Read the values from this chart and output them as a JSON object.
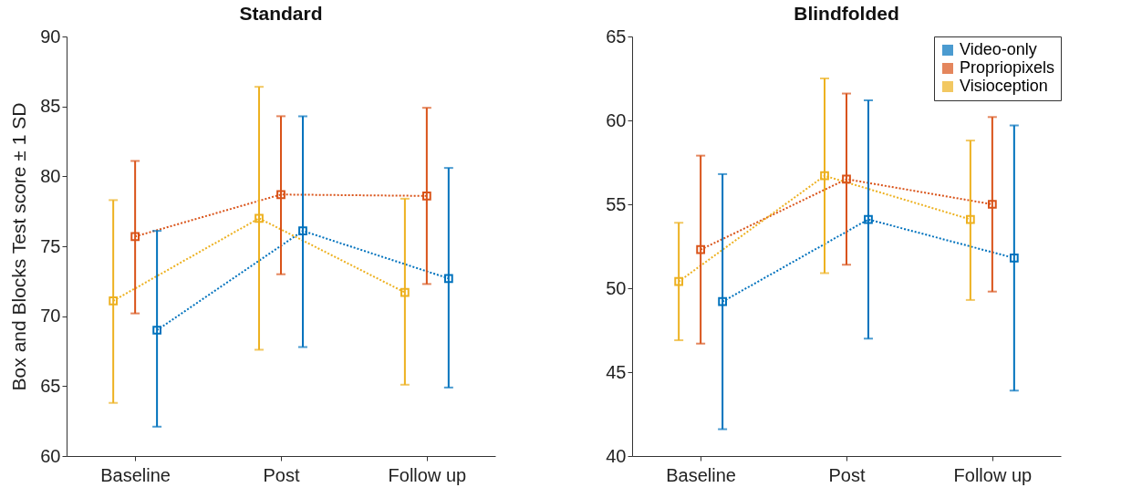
{
  "chart_data": [
    {
      "type": "line",
      "title": "Standard",
      "ylabel": "Box and Blocks Test score ± 1 SD",
      "categories": [
        "Baseline",
        "Post",
        "Follow up"
      ],
      "ylim": [
        60,
        90
      ],
      "yticks": [
        60,
        65,
        70,
        75,
        80,
        85,
        90
      ],
      "grid": false,
      "legend": false,
      "marker": "square",
      "line_style": "dotted",
      "series": [
        {
          "color": "#0072bd",
          "values": [
            69.0,
            76.1,
            72.7
          ],
          "errors": [
            [
              62.1,
              76.1
            ],
            [
              67.8,
              84.3
            ],
            [
              64.9,
              80.6
            ]
          ]
        },
        {
          "color": "#d95319",
          "values": [
            75.7,
            78.7,
            78.6
          ],
          "errors": [
            [
              70.2,
              81.1
            ],
            [
              73.0,
              84.3
            ],
            [
              72.3,
              84.9
            ]
          ]
        },
        {
          "color": "#edb120",
          "values": [
            71.1,
            77.0,
            71.7
          ],
          "errors": [
            [
              63.8,
              78.3
            ],
            [
              67.6,
              86.4
            ],
            [
              65.1,
              78.4
            ]
          ]
        }
      ]
    },
    {
      "type": "line",
      "title": "Blindfolded",
      "categories": [
        "Baseline",
        "Post",
        "Follow up"
      ],
      "ylim": [
        40,
        65
      ],
      "yticks": [
        40,
        45,
        50,
        55,
        60,
        65
      ],
      "grid": false,
      "legend": "top right",
      "marker": "square",
      "line_style": "dotted",
      "series": [
        {
          "name": "Video-only",
          "color": "#0072bd",
          "values": [
            49.2,
            54.1,
            51.8
          ],
          "errors": [
            [
              41.6,
              56.8
            ],
            [
              47.0,
              61.2
            ],
            [
              43.9,
              59.7
            ]
          ]
        },
        {
          "name": "Propriopixels",
          "color": "#d95319",
          "values": [
            52.3,
            56.5,
            55.0
          ],
          "errors": [
            [
              46.7,
              57.9
            ],
            [
              51.4,
              61.6
            ],
            [
              49.8,
              60.2
            ]
          ]
        },
        {
          "name": "Visioception",
          "color": "#edb120",
          "values": [
            50.4,
            56.7,
            54.1
          ],
          "errors": [
            [
              46.9,
              53.9
            ],
            [
              50.9,
              62.5
            ],
            [
              49.3,
              58.8
            ]
          ]
        }
      ]
    }
  ]
}
